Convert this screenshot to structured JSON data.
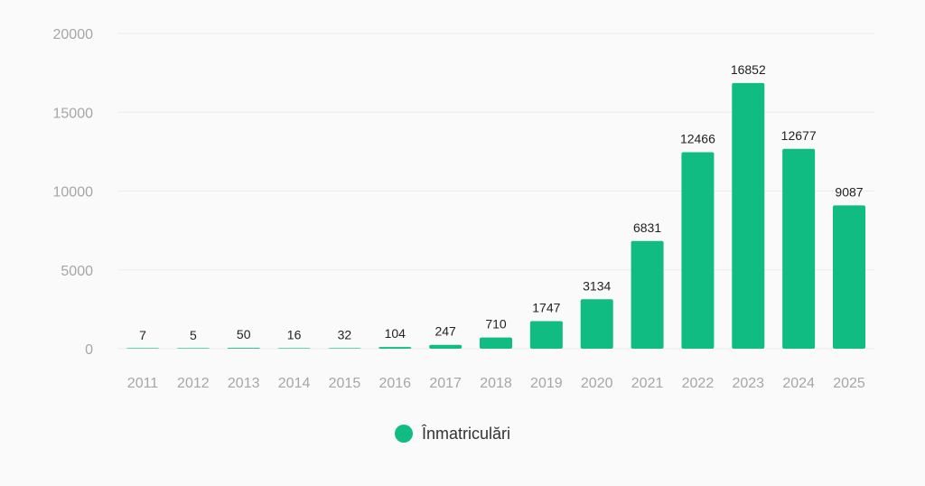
{
  "chart_data": {
    "type": "bar",
    "categories": [
      "2011",
      "2012",
      "2013",
      "2014",
      "2015",
      "2016",
      "2017",
      "2018",
      "2019",
      "2020",
      "2021",
      "2022",
      "2023",
      "2024",
      "2025"
    ],
    "series": [
      {
        "name": "Înmatriculări",
        "values": [
          7,
          5,
          50,
          16,
          32,
          104,
          247,
          710,
          1747,
          3134,
          6831,
          12466,
          16852,
          12677,
          9087
        ],
        "color": "#10bc81"
      }
    ],
    "yticks": [
      "0",
      "5000",
      "10000",
      "15000",
      "20000"
    ],
    "ylim": [
      0,
      20000
    ],
    "grid": true,
    "legend_position": "bottom-center"
  }
}
